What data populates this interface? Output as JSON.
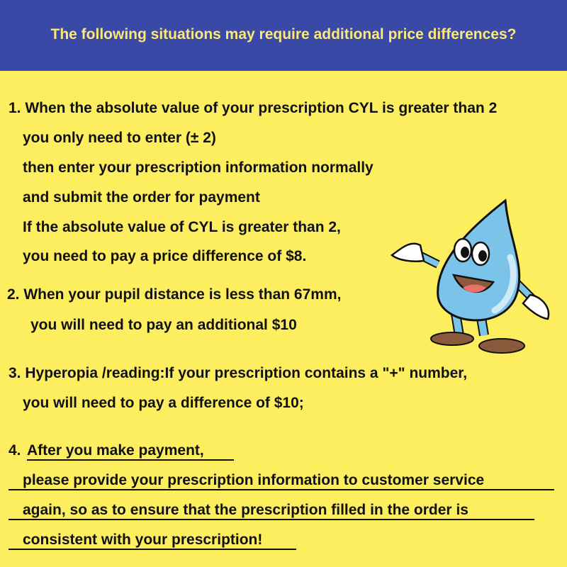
{
  "header": {
    "title": "The following situations may require additional price differences?"
  },
  "items": [
    {
      "lines": [
        "1. When the absolute value of your prescription CYL is greater than 2",
        "you only need to enter (± 2)",
        "then enter your prescription information normally",
        "and submit the order for payment",
        "If the absolute value of CYL is greater than 2,",
        "you need to pay a price difference of $8."
      ]
    },
    {
      "lines": [
        "2. When your pupil distance is less than 67mm,",
        "you will need to pay an additional $10"
      ]
    },
    {
      "lines": [
        "3. Hyperopia /reading:If your prescription contains a \"+\" number,",
        "you will need to pay a difference of $10;"
      ]
    },
    {
      "number": "4.",
      "lines": [
        "After you make payment,",
        "please provide your prescription information to customer service",
        "again, so as to ensure that the prescription filled in the order is",
        "consistent with your prescription!"
      ]
    }
  ],
  "mascot": {
    "icon": "water-drop-mascot-icon",
    "color": "#7cc3ea"
  },
  "colors": {
    "background": "#fdee60",
    "header": "#3b49a6",
    "header_text": "#fbe87a"
  }
}
